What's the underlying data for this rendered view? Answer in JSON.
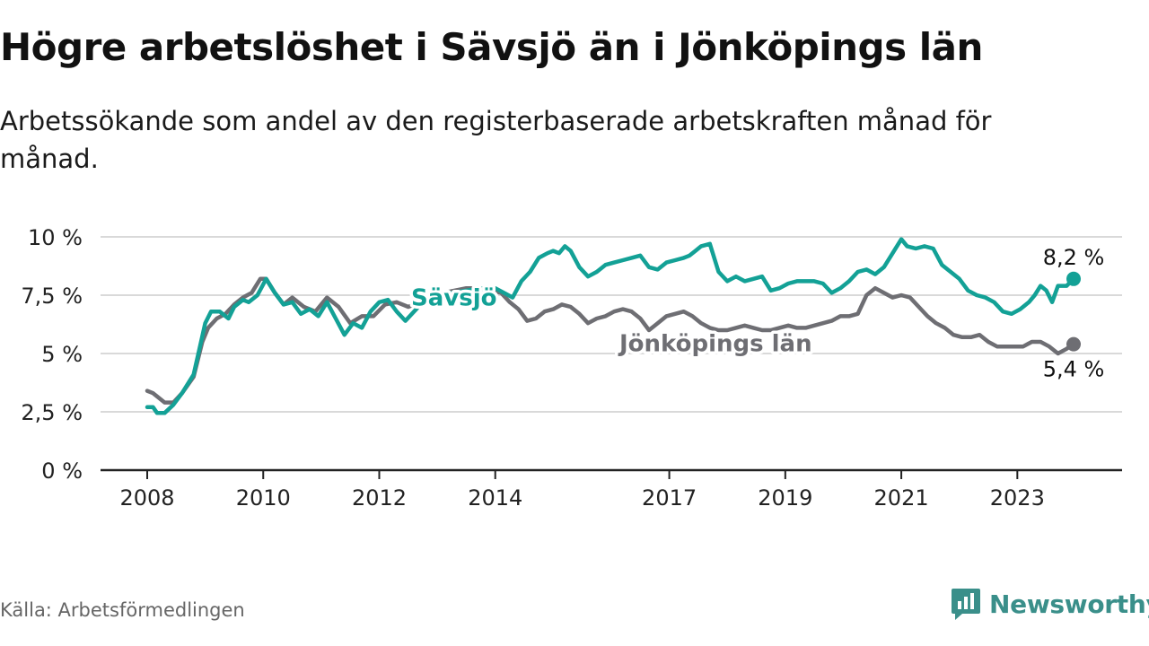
{
  "header": {
    "title": "Högre arbetslöshet i Sävsjö än i Jönköpings län",
    "subtitle": "Arbetssökande som andel av den registerbaserade arbetskraften månad för månad."
  },
  "footer": {
    "source": "Källa: Arbetsförmedlingen",
    "brand": "Newsworthy"
  },
  "colors": {
    "savsjo": "#13a196",
    "lan": "#6e6e73",
    "grid": "#d9d9d9",
    "axis": "#222222",
    "brand": "#3a8f8a"
  },
  "chart_data": {
    "type": "line",
    "title": "Högre arbetslöshet i Sävsjö än i Jönköpings län",
    "xlabel": "",
    "ylabel": "",
    "xlim": [
      2007.8,
      2024.5
    ],
    "ylim": [
      0,
      10
    ],
    "grid": true,
    "x_ticks": [
      2008,
      2010,
      2012,
      2014,
      2017,
      2019,
      2021,
      2023
    ],
    "y_ticks": [
      {
        "value": 0,
        "label": "0 %"
      },
      {
        "value": 2.5,
        "label": "2,5 %"
      },
      {
        "value": 5,
        "label": "5 %"
      },
      {
        "value": 7.5,
        "label": "7,5 %"
      },
      {
        "value": 10,
        "label": "10 %"
      }
    ],
    "series": [
      {
        "name": "Sävsjö",
        "label": "Sävsjö",
        "end_label": "8,2 %",
        "end_value": 8.2,
        "x": [
          2008.0,
          2008.1,
          2008.17,
          2008.3,
          2008.45,
          2008.6,
          2008.8,
          2008.9,
          2009.0,
          2009.1,
          2009.25,
          2009.4,
          2009.5,
          2009.65,
          2009.75,
          2009.9,
          2010.05,
          2010.2,
          2010.35,
          2010.5,
          2010.65,
          2010.8,
          2010.95,
          2011.1,
          2011.25,
          2011.4,
          2011.55,
          2011.7,
          2011.85,
          2012.0,
          2012.15,
          2012.3,
          2012.45,
          2012.6,
          2012.75,
          2012.9,
          2013.0,
          2013.25,
          2013.5,
          2013.75,
          2014.0,
          2014.15,
          2014.3,
          2014.45,
          2014.6,
          2014.75,
          2014.9,
          2015.0,
          2015.1,
          2015.2,
          2015.3,
          2015.45,
          2015.6,
          2015.75,
          2015.9,
          2016.05,
          2016.2,
          2016.35,
          2016.5,
          2016.65,
          2016.8,
          2016.95,
          2017.1,
          2017.25,
          2017.35,
          2017.45,
          2017.55,
          2017.7,
          2017.85,
          2018.0,
          2018.15,
          2018.3,
          2018.45,
          2018.6,
          2018.75,
          2018.9,
          2019.05,
          2019.2,
          2019.35,
          2019.5,
          2019.65,
          2019.8,
          2019.95,
          2020.1,
          2020.25,
          2020.4,
          2020.55,
          2020.7,
          2020.85,
          2021.0,
          2021.1,
          2021.25,
          2021.4,
          2021.55,
          2021.7,
          2021.85,
          2022.0,
          2022.15,
          2022.3,
          2022.45,
          2022.6,
          2022.75,
          2022.9,
          2023.05,
          2023.2,
          2023.3,
          2023.4,
          2023.5,
          2023.6,
          2023.7,
          2023.85,
          2023.97
        ],
        "values": [
          2.7,
          2.7,
          2.45,
          2.45,
          2.8,
          3.3,
          4.1,
          5.2,
          6.3,
          6.8,
          6.8,
          6.5,
          7.0,
          7.3,
          7.2,
          7.5,
          8.2,
          7.6,
          7.1,
          7.2,
          6.7,
          6.9,
          6.6,
          7.2,
          6.5,
          5.8,
          6.3,
          6.1,
          6.8,
          7.2,
          7.3,
          6.8,
          6.4,
          6.8,
          7.2,
          7.3,
          7.4,
          7.6,
          7.7,
          7.8,
          7.8,
          7.6,
          7.4,
          8.1,
          8.5,
          9.1,
          9.3,
          9.4,
          9.3,
          9.6,
          9.4,
          8.7,
          8.3,
          8.5,
          8.8,
          8.9,
          9.0,
          9.1,
          9.2,
          8.7,
          8.6,
          8.9,
          9.0,
          9.1,
          9.2,
          9.4,
          9.6,
          9.7,
          8.5,
          8.1,
          8.3,
          8.1,
          8.2,
          8.3,
          7.7,
          7.8,
          8.0,
          8.1,
          8.1,
          8.1,
          8.0,
          7.6,
          7.8,
          8.1,
          8.5,
          8.6,
          8.4,
          8.7,
          9.3,
          9.9,
          9.6,
          9.5,
          9.6,
          9.5,
          8.8,
          8.5,
          8.2,
          7.7,
          7.5,
          7.4,
          7.2,
          6.8,
          6.7,
          6.9,
          7.2,
          7.5,
          7.9,
          7.7,
          7.2,
          7.9,
          7.9,
          8.2
        ]
      },
      {
        "name": "Jönköpings län",
        "label": "Jönköpings län",
        "end_label": "5,4 %",
        "end_value": 5.4,
        "x": [
          2008.0,
          2008.1,
          2008.2,
          2008.3,
          2008.45,
          2008.6,
          2008.8,
          2008.95,
          2009.05,
          2009.2,
          2009.35,
          2009.5,
          2009.65,
          2009.8,
          2009.95,
          2010.05,
          2010.2,
          2010.35,
          2010.5,
          2010.7,
          2010.9,
          2011.1,
          2011.3,
          2011.5,
          2011.7,
          2011.9,
          2012.1,
          2012.3,
          2012.5,
          2012.7,
          2012.9,
          2013.1,
          2013.3,
          2013.5,
          2013.7,
          2013.9,
          2014.1,
          2014.25,
          2014.4,
          2014.55,
          2014.7,
          2014.85,
          2015.0,
          2015.15,
          2015.3,
          2015.45,
          2015.6,
          2015.75,
          2015.9,
          2016.05,
          2016.2,
          2016.35,
          2016.5,
          2016.65,
          2016.8,
          2016.95,
          2017.1,
          2017.25,
          2017.4,
          2017.55,
          2017.7,
          2017.85,
          2018.0,
          2018.15,
          2018.3,
          2018.45,
          2018.6,
          2018.75,
          2018.9,
          2019.05,
          2019.2,
          2019.35,
          2019.5,
          2019.65,
          2019.8,
          2019.95,
          2020.1,
          2020.25,
          2020.4,
          2020.55,
          2020.7,
          2020.85,
          2021.0,
          2021.15,
          2021.3,
          2021.45,
          2021.6,
          2021.75,
          2021.9,
          2022.05,
          2022.2,
          2022.35,
          2022.5,
          2022.65,
          2022.8,
          2022.95,
          2023.1,
          2023.25,
          2023.4,
          2023.55,
          2023.7,
          2023.85,
          2023.97
        ],
        "values": [
          3.4,
          3.3,
          3.1,
          2.9,
          2.9,
          3.3,
          4.0,
          5.5,
          6.1,
          6.5,
          6.7,
          7.1,
          7.4,
          7.6,
          8.2,
          8.2,
          7.6,
          7.1,
          7.4,
          7.0,
          6.8,
          7.4,
          7.0,
          6.3,
          6.6,
          6.6,
          7.1,
          7.2,
          7.0,
          7.2,
          7.5,
          7.6,
          7.7,
          7.8,
          7.8,
          7.7,
          7.6,
          7.2,
          6.9,
          6.4,
          6.5,
          6.8,
          6.9,
          7.1,
          7.0,
          6.7,
          6.3,
          6.5,
          6.6,
          6.8,
          6.9,
          6.8,
          6.5,
          6.0,
          6.3,
          6.6,
          6.7,
          6.8,
          6.6,
          6.3,
          6.1,
          6.0,
          6.0,
          6.1,
          6.2,
          6.1,
          6.0,
          6.0,
          6.1,
          6.2,
          6.1,
          6.1,
          6.2,
          6.3,
          6.4,
          6.6,
          6.6,
          6.7,
          7.5,
          7.8,
          7.6,
          7.4,
          7.5,
          7.4,
          7.0,
          6.6,
          6.3,
          6.1,
          5.8,
          5.7,
          5.7,
          5.8,
          5.5,
          5.3,
          5.3,
          5.3,
          5.3,
          5.5,
          5.5,
          5.3,
          5.0,
          5.2,
          5.4
        ]
      }
    ]
  }
}
